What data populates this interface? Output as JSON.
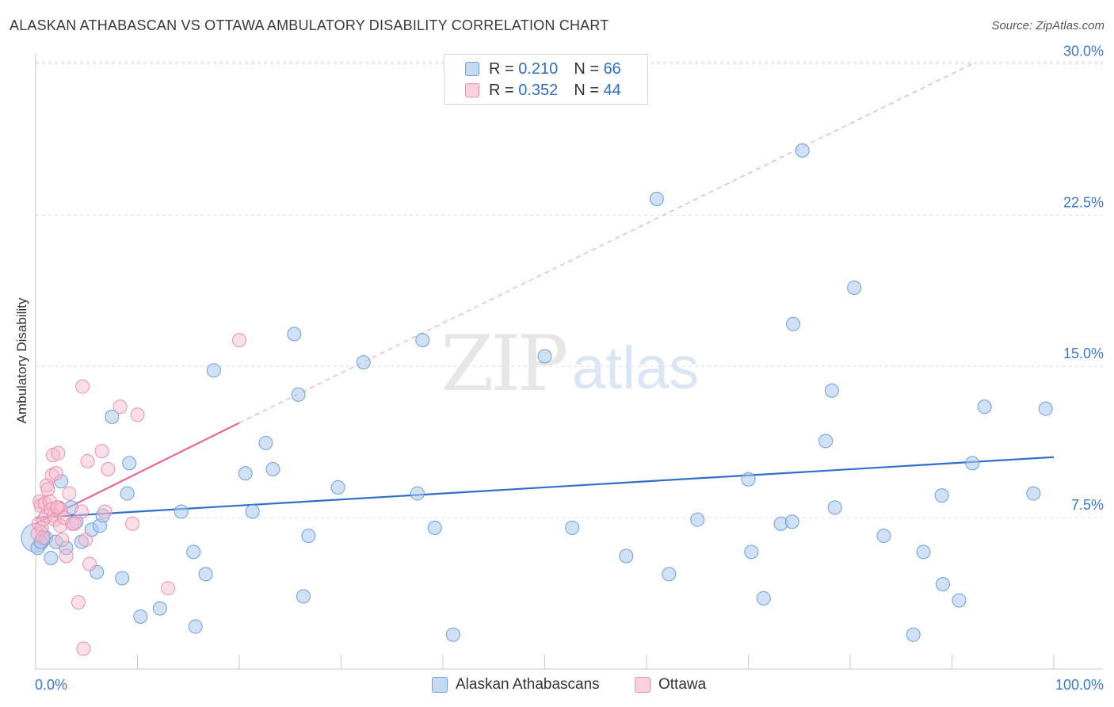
{
  "title": "ALASKAN ATHABASCAN VS OTTAWA AMBULATORY DISABILITY CORRELATION CHART",
  "source": "Source: ZipAtlas.com",
  "watermark": {
    "zip": "ZIP",
    "atlas": "atlas"
  },
  "legend": {
    "r_label": "R =",
    "n_label": "N =",
    "rows": [
      {
        "r": "0.210",
        "n": "66"
      },
      {
        "r": "0.352",
        "n": "44"
      }
    ]
  },
  "colors": {
    "blue_fill": "#a9c8ee",
    "blue_stroke": "#6d9fd8",
    "blue_line": "#2f6fca",
    "pink_fill": "#f6b8cb",
    "pink_stroke": "#e991ad",
    "pink_line": "#e46b95",
    "axis_text": "#3a78d0",
    "grid": "#dddddd"
  },
  "chart_data": {
    "type": "scatter",
    "title": "ALASKAN ATHABASCAN VS OTTAWA AMBULATORY DISABILITY CORRELATION CHART",
    "xlabel": "",
    "ylabel": "Ambulatory Disability",
    "xlim": [
      0,
      100
    ],
    "ylim": [
      0,
      31
    ],
    "x_tick_labels": [
      "0.0%",
      "100.0%"
    ],
    "y_ticks": [
      7.5,
      15.0,
      22.5,
      30.0
    ],
    "y_tick_labels": [
      "7.5%",
      "15.0%",
      "22.5%",
      "30.0%"
    ],
    "series": [
      {
        "name": "Alaskan Athabascans",
        "color": "blue",
        "R": 0.21,
        "N": 66,
        "trend": {
          "x": [
            0,
            100
          ],
          "y": [
            7.5,
            10.5
          ],
          "style": "solid"
        },
        "points": [
          [
            0.2,
            6.0
          ],
          [
            0.5,
            6.3
          ],
          [
            1.0,
            6.5
          ],
          [
            1.5,
            5.5
          ],
          [
            2.0,
            6.3
          ],
          [
            2.5,
            9.3
          ],
          [
            3.0,
            6.0
          ],
          [
            3.5,
            8.0
          ],
          [
            4.0,
            7.3
          ],
          [
            4.5,
            6.3
          ],
          [
            5.5,
            6.9
          ],
          [
            6.0,
            4.8
          ],
          [
            6.3,
            7.1
          ],
          [
            6.6,
            7.6
          ],
          [
            7.5,
            12.5
          ],
          [
            8.5,
            4.5
          ],
          [
            9.0,
            8.7
          ],
          [
            9.2,
            10.2
          ],
          [
            10.3,
            2.6
          ],
          [
            12.2,
            3.0
          ],
          [
            14.3,
            7.8
          ],
          [
            15.5,
            5.8
          ],
          [
            15.7,
            2.1
          ],
          [
            16.7,
            4.7
          ],
          [
            17.5,
            14.8
          ],
          [
            20.6,
            9.7
          ],
          [
            21.3,
            7.8
          ],
          [
            22.6,
            11.2
          ],
          [
            23.3,
            9.9
          ],
          [
            25.4,
            16.6
          ],
          [
            25.8,
            13.6
          ],
          [
            26.3,
            3.6
          ],
          [
            26.8,
            6.6
          ],
          [
            29.7,
            9.0
          ],
          [
            32.2,
            15.2
          ],
          [
            37.5,
            8.7
          ],
          [
            38.0,
            16.3
          ],
          [
            39.2,
            7.0
          ],
          [
            41.0,
            1.7
          ],
          [
            50.0,
            15.5
          ],
          [
            52.7,
            7.0
          ],
          [
            58.0,
            5.6
          ],
          [
            61.0,
            23.3
          ],
          [
            62.2,
            4.7
          ],
          [
            65.0,
            7.4
          ],
          [
            70.0,
            9.4
          ],
          [
            70.3,
            5.8
          ],
          [
            71.5,
            3.5
          ],
          [
            73.2,
            7.2
          ],
          [
            74.3,
            7.3
          ],
          [
            74.4,
            17.1
          ],
          [
            75.3,
            25.7
          ],
          [
            77.6,
            11.3
          ],
          [
            78.2,
            13.8
          ],
          [
            78.5,
            8.0
          ],
          [
            80.4,
            18.9
          ],
          [
            83.3,
            6.6
          ],
          [
            86.2,
            1.7
          ],
          [
            87.2,
            5.8
          ],
          [
            89.0,
            8.6
          ],
          [
            89.1,
            4.2
          ],
          [
            90.7,
            3.4
          ],
          [
            92.0,
            10.2
          ],
          [
            93.2,
            13.0
          ],
          [
            98.0,
            8.7
          ],
          [
            99.2,
            12.9
          ]
        ]
      },
      {
        "name": "Ottawa",
        "color": "pink",
        "R": 0.352,
        "N": 44,
        "trend_solid": {
          "x": [
            0,
            20
          ],
          "y": [
            7.2,
            12.2
          ],
          "style": "solid"
        },
        "trend_dashed": {
          "x": [
            20,
            92
          ],
          "y": [
            12.2,
            30.0
          ],
          "style": "dashed"
        },
        "points": [
          [
            0.2,
            6.7
          ],
          [
            0.3,
            7.2
          ],
          [
            0.4,
            8.3
          ],
          [
            0.5,
            8.1
          ],
          [
            0.6,
            7.0
          ],
          [
            0.7,
            6.5
          ],
          [
            0.8,
            7.4
          ],
          [
            0.9,
            8.2
          ],
          [
            1.0,
            7.6
          ],
          [
            1.1,
            9.1
          ],
          [
            1.2,
            8.9
          ],
          [
            1.4,
            8.3
          ],
          [
            1.5,
            7.9
          ],
          [
            1.6,
            9.6
          ],
          [
            1.7,
            10.6
          ],
          [
            1.8,
            7.6
          ],
          [
            1.9,
            7.4
          ],
          [
            2.0,
            9.7
          ],
          [
            2.2,
            10.7
          ],
          [
            2.3,
            8.0
          ],
          [
            2.4,
            7.1
          ],
          [
            2.5,
            7.9
          ],
          [
            2.6,
            6.4
          ],
          [
            2.8,
            7.5
          ],
          [
            3.0,
            5.6
          ],
          [
            3.3,
            8.7
          ],
          [
            3.6,
            7.2
          ],
          [
            3.8,
            7.2
          ],
          [
            4.2,
            3.3
          ],
          [
            4.5,
            7.8
          ],
          [
            4.6,
            14.0
          ],
          [
            4.7,
            1.0
          ],
          [
            4.9,
            6.4
          ],
          [
            5.1,
            10.3
          ],
          [
            5.3,
            5.2
          ],
          [
            6.5,
            10.8
          ],
          [
            6.8,
            7.8
          ],
          [
            7.1,
            9.9
          ],
          [
            8.3,
            13.0
          ],
          [
            9.5,
            7.2
          ],
          [
            10.0,
            12.6
          ],
          [
            13.0,
            4.0
          ],
          [
            20.0,
            16.3
          ],
          [
            2.1,
            8.0
          ]
        ]
      }
    ]
  }
}
